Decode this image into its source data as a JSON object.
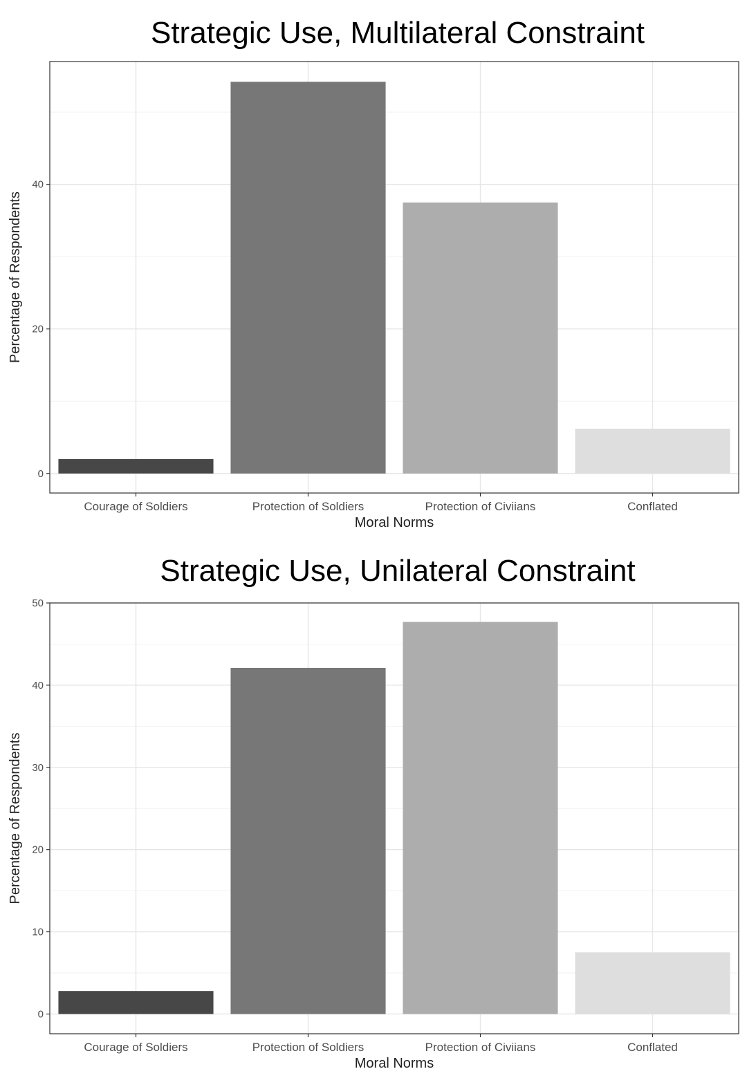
{
  "chart_data": [
    {
      "type": "bar",
      "title": "Strategic Use, Multilateral Constraint",
      "xlabel": "Moral Norms",
      "ylabel": "Percentage of Respondents",
      "categories": [
        "Courage of Soldiers",
        "Protection of Soldiers",
        "Protection of Civiians",
        "Conflated"
      ],
      "values": [
        2,
        54.2,
        37.5,
        6.2
      ],
      "colors": [
        "#474747",
        "#777777",
        "#adadad",
        "#dedede"
      ],
      "yticks": [
        0,
        20,
        40
      ],
      "ylim": [
        -2.7,
        57
      ],
      "grid": true,
      "legend": "none"
    },
    {
      "type": "bar",
      "title": "Strategic Use, Unilateral Constraint",
      "xlabel": "Moral Norms",
      "ylabel": "Percentage of Respondents",
      "categories": [
        "Courage of Soldiers",
        "Protection of Soldiers",
        "Protection of Civiians",
        "Conflated"
      ],
      "values": [
        2.8,
        42.1,
        47.7,
        7.5
      ],
      "colors": [
        "#474747",
        "#777777",
        "#adadad",
        "#dedede"
      ],
      "yticks": [
        0,
        10,
        20,
        30,
        40,
        50
      ],
      "ylim": [
        -2.4,
        50
      ],
      "grid": true,
      "legend": "none"
    }
  ]
}
